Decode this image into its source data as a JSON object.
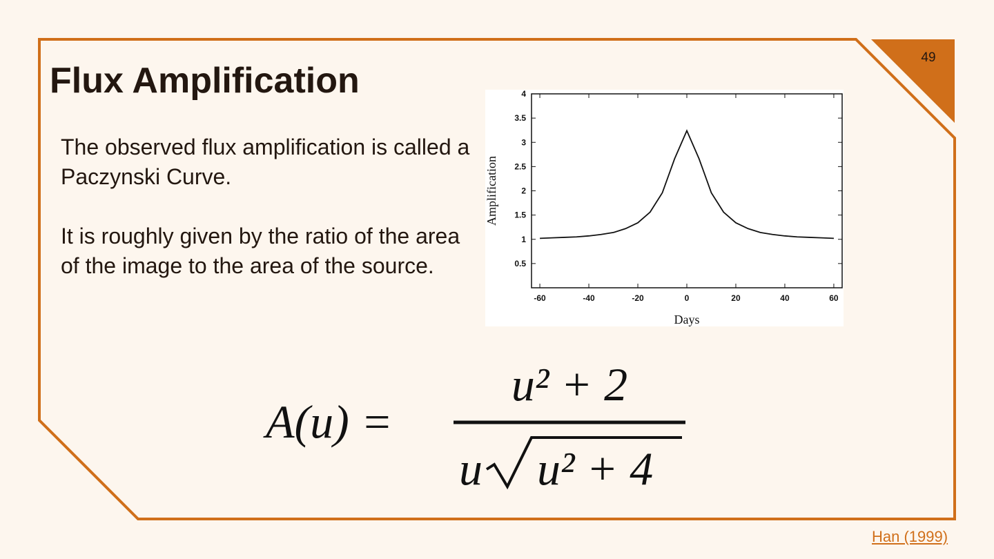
{
  "slide": {
    "page_number": "49",
    "title": "Flux Amplification",
    "paragraphs": [
      "The observed flux amplification is called a Paczynski Curve.",
      "It is roughly given by the ratio of the area of the image to the area of the source."
    ],
    "formula": {
      "lhs": "A(u) =",
      "numerator": "u² + 2",
      "denominator_factor": "u",
      "radicand": "u² + 4"
    },
    "citation": "Han (1999)"
  },
  "chart_data": {
    "type": "line",
    "x_label": "Days",
    "y_label": "Amplification",
    "x": [
      -60,
      -55,
      -50,
      -45,
      -40,
      -35,
      -30,
      -25,
      -20,
      -15,
      -10,
      -5,
      0,
      5,
      10,
      15,
      20,
      25,
      30,
      35,
      40,
      45,
      50,
      55,
      60
    ],
    "series": [
      {
        "name": "Amplification",
        "color": "#111111",
        "values": [
          1.02,
          1.03,
          1.04,
          1.05,
          1.07,
          1.1,
          1.14,
          1.22,
          1.34,
          1.56,
          1.96,
          2.66,
          3.24,
          2.66,
          1.96,
          1.56,
          1.34,
          1.22,
          1.14,
          1.1,
          1.07,
          1.05,
          1.04,
          1.03,
          1.02
        ]
      }
    ],
    "xlim": [
      -63.4,
      63.4
    ],
    "xticks": [
      -60,
      -40,
      -20,
      0,
      20,
      40,
      60
    ],
    "ylim": [
      0,
      4
    ],
    "yticks": [
      0.5,
      1,
      1.5,
      2,
      2.5,
      3,
      3.5,
      4
    ]
  }
}
